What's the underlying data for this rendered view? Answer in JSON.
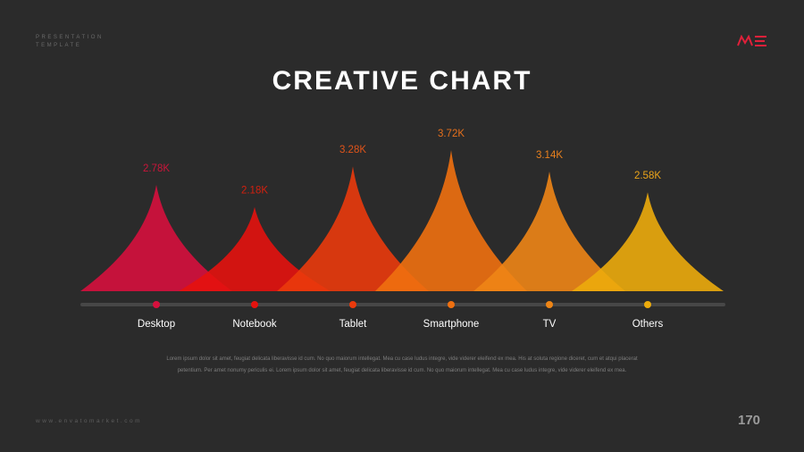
{
  "header": {
    "brand_line1": "PRESENTATION",
    "brand_line2": "TEMPLATE",
    "logo_text": "ME",
    "logo_color": "#e0203a"
  },
  "title": "CREATIVE CHART",
  "chart_data": {
    "type": "area",
    "title": "CREATIVE CHART",
    "categories": [
      "Desktop",
      "Notebook",
      "Tablet",
      "Smartphone",
      "TV",
      "Others"
    ],
    "values": [
      2.78,
      2.18,
      3.28,
      3.72,
      3.14,
      2.58
    ],
    "value_labels": [
      "2.78K",
      "2.18K",
      "3.28K",
      "3.72K",
      "3.14K",
      "2.58K"
    ],
    "unit": "K",
    "colors": [
      "#d6103d",
      "#e4120e",
      "#ea3a0c",
      "#ef7010",
      "#ee8516",
      "#ecab0c"
    ],
    "label_colors": [
      "#c9163a",
      "#d2200f",
      "#e0541a",
      "#e6701c",
      "#e8801e",
      "#eaa41a"
    ],
    "ylim": [
      0,
      4
    ],
    "grid": false,
    "legend": "none"
  },
  "description": "Lorem ipsum dolor sit amet, feugiat delicata liberavisse id cum. No quo maiorum intellegat. Mea cu case ludus integre, vide viderer eleifend ex mea. His at soluta regione diceret, cum et atqui placerat petentium. Per amet nonumy periculis ei. Lorem ipsum dolor sit amet, feugiat delicata liberavisse id cum. No quo maiorum intellegat. Mea cu case ludus integre, vide viderer eleifend ex mea.",
  "footer": {
    "url": "www.envatomarket.com",
    "page_number": "170"
  }
}
